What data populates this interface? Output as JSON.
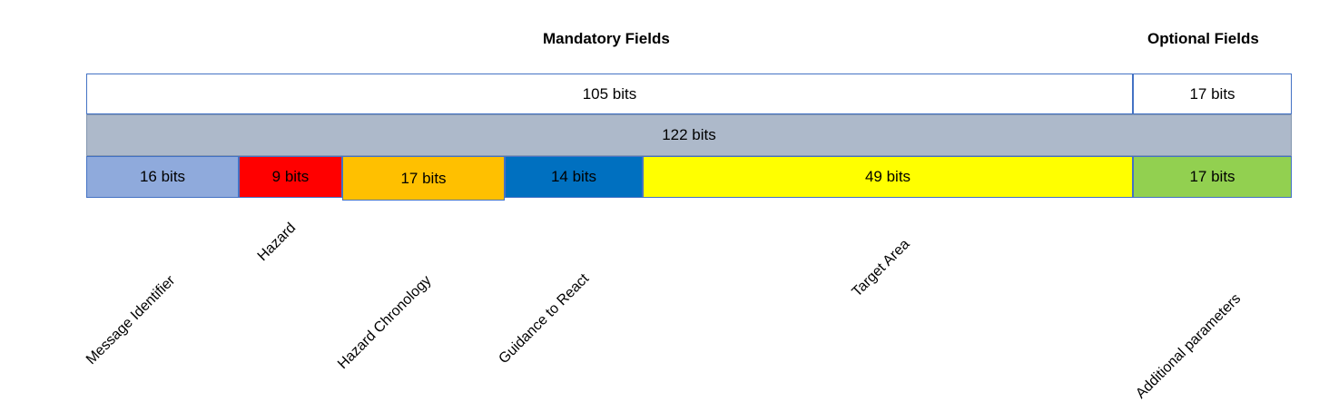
{
  "headings": {
    "mandatory": "Mandatory Fields",
    "optional": "Optional Fields"
  },
  "row_total_split": {
    "mandatory_bits": "105 bits",
    "optional_bits": "17 bits"
  },
  "row_total": {
    "total_bits": "122 bits"
  },
  "fields": [
    {
      "bits": "16 bits",
      "label": "Message Identifier",
      "color": "#8faadc"
    },
    {
      "bits": "9 bits",
      "label": "Hazard",
      "color": "#ff0000"
    },
    {
      "bits": "17 bits",
      "label": "Hazard Chronology",
      "color": "#ffc000"
    },
    {
      "bits": "14 bits",
      "label": "Guidance to React",
      "color": "#0070c0"
    },
    {
      "bits": "49 bits",
      "label": "Target Area",
      "color": "#ffff00"
    },
    {
      "bits": "17 bits",
      "label": "Additional parameters",
      "color": "#92d050"
    }
  ]
}
